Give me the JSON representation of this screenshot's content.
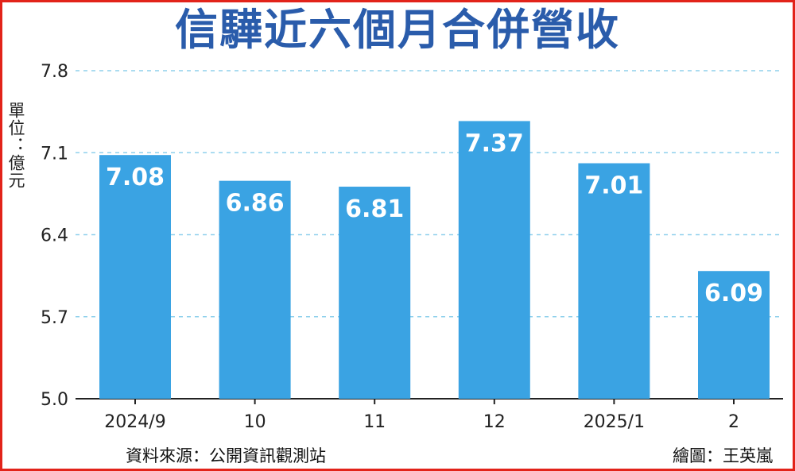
{
  "colors": {
    "bar": "#3aa3e3",
    "title": "#2a5cab",
    "border": "#e2231a",
    "grid": "#8fd0ec"
  },
  "unit_label": "單位：億元",
  "source": "資料來源：公開資訊觀測站",
  "credit": "繪圖：王英嵐",
  "chart_data": {
    "type": "bar",
    "title": "信驊近六個月合併營收",
    "xlabel": "",
    "ylabel": "單位：億元",
    "categories": [
      "2024/9",
      "10",
      "11",
      "12",
      "2025/1",
      "2"
    ],
    "values": [
      7.08,
      6.86,
      6.81,
      7.37,
      7.01,
      6.09
    ],
    "value_labels": [
      "7.08",
      "6.86",
      "6.81",
      "7.37",
      "7.01",
      "6.09"
    ],
    "ylim": [
      5.0,
      7.8
    ],
    "yticks": [
      "5.0",
      "5.7",
      "6.4",
      "7.1",
      "7.8"
    ],
    "grid": true,
    "legend": "none"
  }
}
